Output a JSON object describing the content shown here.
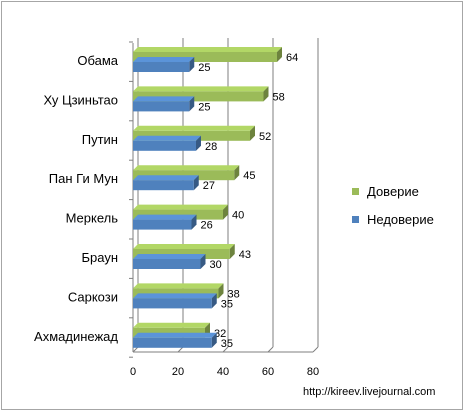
{
  "chart_data": {
    "type": "bar",
    "orientation": "horizontal",
    "categories": [
      "Обама",
      "Ху Цзиньтао",
      "Путин",
      "Пан Ги Мун",
      "Меркель",
      "Браун",
      "Саркози",
      "Ахмадинежад"
    ],
    "series": [
      {
        "name": "Доверие",
        "color": "#9bbb59",
        "values": [
          64,
          58,
          52,
          45,
          40,
          43,
          38,
          32
        ]
      },
      {
        "name": "Недоверие",
        "color": "#4f81bd",
        "values": [
          25,
          25,
          28,
          27,
          26,
          30,
          35,
          35
        ]
      }
    ],
    "xlim": [
      0,
      80
    ],
    "xticks": [
      "0",
      "20",
      "40",
      "60",
      "80"
    ],
    "grid": true,
    "legend_position": "right"
  },
  "watermark": "http://kireev.livejournal.com"
}
